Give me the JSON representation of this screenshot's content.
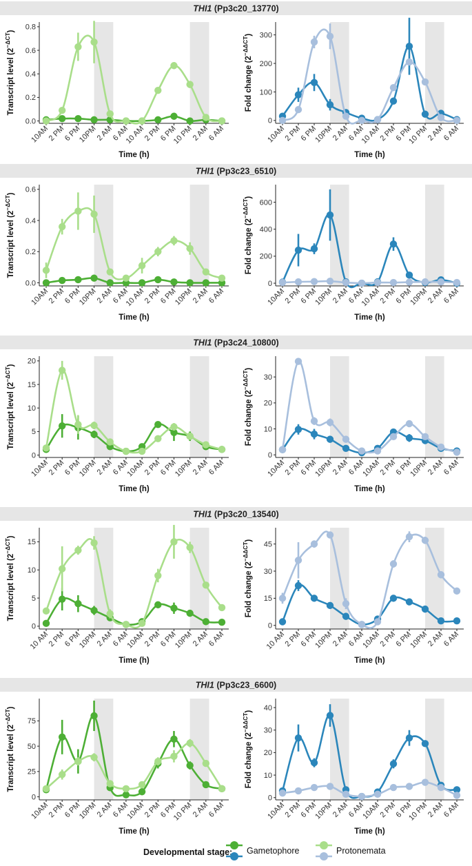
{
  "legend": {
    "title": "Developmental stage:",
    "entries": [
      {
        "name": "Gametophore",
        "colors": [
          "#4daf35",
          "#2b86bb"
        ]
      },
      {
        "name": "Protonemata",
        "colors": [
          "#a9de8a",
          "#a8bfdd"
        ]
      }
    ]
  },
  "colors": {
    "gametophore_left": "#4daf35",
    "protonemata_left": "#a9de8a",
    "gametophore_right": "#2b86bb",
    "protonemata_right": "#a8bfdd",
    "night_shade": "#e6e6e6",
    "strip": "#e6e6e6"
  },
  "chart_data": [
    {
      "row_title": {
        "gene": "THI1",
        "id": "(Pp3c20_13770)"
      },
      "categories": [
        "10AM",
        "2 PM",
        "6 PM",
        "10PM",
        "2 AM",
        "6 AM",
        "10 AM",
        "2 PM",
        "6 PM",
        "10 PM",
        "2 AM",
        "6 AM"
      ],
      "night_intervals": [
        [
          3,
          4.2
        ],
        [
          9,
          10.2
        ]
      ],
      "left": {
        "type": "line",
        "ylabel": "Transcript level (2^-ΔCT)",
        "xlabel": "Time (h)",
        "ylim": [
          -0.02,
          0.84
        ],
        "yticks": [
          0.0,
          0.2,
          0.4,
          0.6,
          0.8
        ],
        "ytick_labels": [
          "0.0",
          "0.2",
          "0.4",
          "0.6",
          "0.8"
        ],
        "series": [
          {
            "name": "Gametophore",
            "values": [
              0.01,
              0.02,
              0.02,
              0.01,
              0.01,
              0.0,
              0.0,
              0.01,
              0.04,
              0.0,
              0.01,
              0.0
            ],
            "errors": [
              0.01,
              0.01,
              0.01,
              0.01,
              0.0,
              0.0,
              0.0,
              0.01,
              0.01,
              0.0,
              0.0,
              0.0
            ]
          },
          {
            "name": "Protonemata",
            "values": [
              0.0,
              0.09,
              0.63,
              0.67,
              0.06,
              0.0,
              0.0,
              0.26,
              0.47,
              0.31,
              0.03,
              0.0
            ],
            "errors": [
              0.0,
              0.02,
              0.12,
              0.18,
              0.02,
              0.0,
              0.0,
              0.02,
              0.02,
              0.03,
              0.01,
              0.0
            ]
          }
        ]
      },
      "right": {
        "type": "line",
        "ylabel": "Fold change (2^-ΔΔCT)",
        "xlabel": "Time (h)",
        "ylim": [
          -10,
          345
        ],
        "yticks": [
          0,
          100,
          200,
          300
        ],
        "ytick_labels": [
          "0",
          "100",
          "200",
          "300"
        ],
        "series": [
          {
            "name": "Gametophore",
            "values": [
              15,
              90,
              133,
              55,
              28,
              8,
              3,
              68,
              260,
              22,
              25,
              3
            ],
            "errors": [
              8,
              25,
              30,
              20,
              8,
              4,
              2,
              12,
              100,
              5,
              10,
              2
            ]
          },
          {
            "name": "Protonemata",
            "values": [
              0,
              38,
              275,
              295,
              15,
              0,
              3,
              115,
              205,
              135,
              10,
              0
            ],
            "errors": [
              0,
              8,
              22,
              45,
              5,
              0,
              2,
              10,
              8,
              8,
              4,
              0
            ]
          }
        ]
      }
    },
    {
      "row_title": {
        "gene": "THI1",
        "id": "(Pp3c23_6510)"
      },
      "categories": [
        "10AM",
        "2 PM",
        "6 PM",
        "10PM",
        "2 AM",
        "6 AM",
        "10 AM",
        "2 PM",
        "6 PM",
        "10PM",
        "2 AM",
        "6 AM"
      ],
      "night_intervals": [
        [
          3,
          4.2
        ],
        [
          9,
          10.2
        ]
      ],
      "left": {
        "type": "line",
        "ylabel": "Transcript level (2^-ΔCT)",
        "xlabel": "Time (h)",
        "ylim": [
          -0.02,
          0.63
        ],
        "yticks": [
          0.0,
          0.2,
          0.4,
          0.6
        ],
        "ytick_labels": [
          "0.0",
          "0.2",
          "0.4",
          "0.6"
        ],
        "series": [
          {
            "name": "Gametophore",
            "values": [
              0.0,
              0.015,
              0.02,
              0.03,
              0.0,
              0.0,
              0.0,
              0.02,
              0.005,
              0.0,
              0.0,
              0.0
            ],
            "errors": [
              0.01,
              0.01,
              0.01,
              0.02,
              0.0,
              0.0,
              0.0,
              0.01,
              0.01,
              0.0,
              0.0,
              0.0
            ]
          },
          {
            "name": "Protonemata",
            "values": [
              0.08,
              0.36,
              0.46,
              0.44,
              0.07,
              0.03,
              0.11,
              0.2,
              0.27,
              0.22,
              0.07,
              0.03
            ],
            "errors": [
              0.05,
              0.05,
              0.12,
              0.12,
              0.02,
              0.01,
              0.05,
              0.03,
              0.03,
              0.04,
              0.01,
              0.01
            ]
          }
        ]
      },
      "right": {
        "type": "line",
        "ylabel": "Fold change (2^-ΔΔCT)",
        "xlabel": "Time (h)",
        "ylim": [
          -20,
          730
        ],
        "yticks": [
          0,
          200,
          400,
          600
        ],
        "ytick_labels": [
          "0",
          "200",
          "400",
          "600"
        ],
        "series": [
          {
            "name": "Gametophore",
            "values": [
              8,
              245,
              255,
              505,
              10,
              0,
              10,
              290,
              60,
              5,
              25,
              0
            ],
            "errors": [
              10,
              120,
              40,
              190,
              5,
              0,
              5,
              50,
              15,
              3,
              8,
              0
            ]
          },
          {
            "name": "Protonemata",
            "values": [
              5,
              10,
              12,
              15,
              5,
              0,
              5,
              5,
              8,
              10,
              10,
              5
            ],
            "errors": [
              3,
              4,
              4,
              5,
              2,
              0,
              2,
              2,
              3,
              3,
              3,
              2
            ]
          }
        ]
      }
    },
    {
      "row_title": {
        "gene": "THI1",
        "id": "(Pp3c24_10800)"
      },
      "categories": [
        "10AM",
        "2 PM",
        "6 PM",
        "10PM",
        "2 AM",
        "6 AM",
        "10AM",
        "2 PM",
        "6 PM",
        "10PM",
        "2 AM",
        "6 AM"
      ],
      "night_intervals": [
        [
          3,
          4.2
        ],
        [
          9,
          10.2
        ]
      ],
      "left": {
        "type": "line",
        "ylabel": "Transcript level (2^-ΔCT)",
        "xlabel": "Time (h)",
        "ylim": [
          -0.5,
          21
        ],
        "yticks": [
          0,
          5,
          10,
          15,
          20
        ],
        "ytick_labels": [
          "0",
          "5",
          "10",
          "15",
          "20"
        ],
        "series": [
          {
            "name": "Gametophore",
            "values": [
              1.2,
              6.2,
              5.8,
              4.4,
              1.8,
              0.8,
              1.8,
              6.5,
              4.8,
              4.0,
              1.8,
              1.2
            ],
            "errors": [
              0.5,
              2.5,
              2.5,
              0.8,
              0.4,
              0.2,
              0.6,
              0.5,
              1.8,
              1.0,
              0.4,
              0.3
            ]
          },
          {
            "name": "Protonemata",
            "values": [
              1.5,
              18.0,
              6.5,
              6.3,
              2.8,
              0.8,
              0.8,
              3.5,
              6.0,
              4.0,
              2.2,
              1.2
            ],
            "errors": [
              0.5,
              2.0,
              2.0,
              0.8,
              0.5,
              0.2,
              0.3,
              0.6,
              0.8,
              0.6,
              0.4,
              0.3
            ]
          }
        ]
      },
      "right": {
        "type": "line",
        "ylabel": "Fold change (2^-ΔΔCT)",
        "xlabel": "Time (h)",
        "ylim": [
          -1,
          38
        ],
        "yticks": [
          0,
          10,
          20,
          30
        ],
        "ytick_labels": [
          "0",
          "10",
          "20",
          "30"
        ],
        "series": [
          {
            "name": "Gametophore",
            "values": [
              2,
              9.8,
              8,
              6,
              2.5,
              0.8,
              2.5,
              8.8,
              6.5,
              5.5,
              2.5,
              1.5
            ],
            "errors": [
              0.5,
              2,
              2,
              1,
              0.5,
              0.3,
              0.5,
              1,
              1.5,
              1,
              0.5,
              0.4
            ]
          },
          {
            "name": "Protonemata",
            "values": [
              2,
              36,
              13,
              12.5,
              6,
              1.5,
              1.5,
              7,
              12,
              7,
              3,
              1
            ],
            "errors": [
              0.5,
              1,
              1.5,
              1.5,
              0.8,
              0.3,
              0.3,
              1,
              1,
              1,
              0.5,
              0.3
            ]
          }
        ]
      }
    },
    {
      "row_title": {
        "gene": "THI1",
        "id": "(Pp3c20_13540)"
      },
      "categories": [
        "10 AM",
        "2 PM",
        "6 PM",
        "10PM",
        "2 AM",
        "6 AM",
        "10AM",
        "2 PM",
        "6 PM",
        "10PM",
        "2 AM",
        "6 AM"
      ],
      "night_intervals": [
        [
          3,
          4.2
        ],
        [
          9,
          10.2
        ]
      ],
      "left": {
        "type": "line",
        "ylabel": "Transcript level (2^-ΔCT)",
        "xlabel": "Time (h)",
        "ylim": [
          -0.5,
          17.5
        ],
        "yticks": [
          0,
          5,
          10,
          15
        ],
        "ytick_labels": [
          "0",
          "5",
          "10",
          "15"
        ],
        "series": [
          {
            "name": "Gametophore",
            "values": [
              0.5,
              4.8,
              4.0,
              2.8,
              1.5,
              0.3,
              0.8,
              3.8,
              3.2,
              2.3,
              0.8,
              0.7
            ],
            "errors": [
              0.3,
              2,
              1.5,
              0.8,
              0.4,
              0.1,
              0.3,
              0.5,
              1,
              0.5,
              0.3,
              0.2
            ]
          },
          {
            "name": "Protonemata",
            "values": [
              2.7,
              10.2,
              13.5,
              14.8,
              2.2,
              0.3,
              0.5,
              9.0,
              15.0,
              14.0,
              7.3,
              3.3
            ],
            "errors": [
              0.5,
              4.0,
              0.8,
              1.2,
              0.8,
              0.1,
              0.3,
              1.2,
              3.0,
              1.0,
              0.5,
              0.4
            ]
          }
        ]
      },
      "right": {
        "type": "line",
        "ylabel": "Fold change (2^-ΔΔCT)",
        "xlabel": "Time (h)",
        "ylim": [
          -2,
          54
        ],
        "yticks": [
          0,
          15,
          30,
          45
        ],
        "ytick_labels": [
          "0",
          "15",
          "30",
          "45"
        ],
        "series": [
          {
            "name": "Gametophore",
            "values": [
              2,
              22,
              15,
              11,
              5,
              0.5,
              3.5,
              15,
              13,
              9,
              2.5,
              2.5
            ],
            "errors": [
              0.5,
              3,
              1,
              1,
              1,
              0.3,
              1,
              1.5,
              1,
              1,
              0.5,
              0.5
            ]
          },
          {
            "name": "Protonemata",
            "values": [
              15,
              36,
              45,
              50,
              12,
              0.5,
              2,
              34,
              49,
              47,
              28,
              19
            ],
            "errors": [
              3,
              10,
              2,
              1,
              3,
              0.3,
              1,
              2,
              3,
              2,
              2,
              1.5
            ]
          }
        ]
      }
    },
    {
      "row_title": {
        "gene": "THI1",
        "id": "(Pp3c23_6600)"
      },
      "categories": [
        "10AM",
        "2 PM",
        "6 PM",
        "10PM",
        "2 AM",
        "6 AM",
        "10AM",
        "2 PM",
        "6 PM",
        "10 PM",
        "2 AM",
        "6 AM"
      ],
      "night_intervals": [
        [
          3,
          4.2
        ],
        [
          9,
          10.2
        ]
      ],
      "left": {
        "type": "line",
        "ylabel": "Transcript level (2^-ΔCT)",
        "xlabel": "Time (h)",
        "ylim": [
          -3,
          97
        ],
        "yticks": [
          0,
          25,
          50,
          75
        ],
        "ytick_labels": [
          "0",
          "25",
          "50",
          "75"
        ],
        "series": [
          {
            "name": "Gametophore",
            "values": [
              7,
              59,
              35,
              80,
              9,
              2,
              5,
              33,
              57,
              31,
              12,
              8
            ],
            "errors": [
              2,
              17,
              12,
              15,
              3,
              1,
              2,
              5,
              8,
              4,
              2,
              2
            ]
          },
          {
            "name": "Protonemata",
            "values": [
              8,
              22,
              35,
              39,
              13,
              8,
              12,
              35,
              40,
              53,
              33,
              8
            ],
            "errors": [
              2,
              5,
              4,
              4,
              3,
              2,
              2,
              4,
              6,
              4,
              3,
              2
            ]
          }
        ]
      },
      "right": {
        "type": "line",
        "ylabel": "Fold change (2^-ΔΔCT)",
        "xlabel": "Time (h)",
        "ylim": [
          -1,
          44
        ],
        "yticks": [
          0,
          10,
          20,
          30,
          40
        ],
        "ytick_labels": [
          "0",
          "10",
          "20",
          "30",
          "40"
        ],
        "series": [
          {
            "name": "Gametophore",
            "values": [
              3,
              26.5,
              15.5,
              36.5,
              3.5,
              0.5,
              2.5,
              15,
              26.5,
              24,
              5.5,
              3.5
            ],
            "errors": [
              1,
              6,
              2,
              5,
              1,
              0.3,
              0.8,
              2,
              3.5,
              1,
              1,
              1
            ]
          },
          {
            "name": "Protonemata",
            "values": [
              2,
              3,
              4.5,
              5,
              1.5,
              0.5,
              1.5,
              4.5,
              5,
              6.8,
              4.5,
              1
            ],
            "errors": [
              0.5,
              0.8,
              0.8,
              0.8,
              0.5,
              0.3,
              0.5,
              0.8,
              0.8,
              0.8,
              0.8,
              0.4
            ]
          }
        ]
      }
    }
  ]
}
